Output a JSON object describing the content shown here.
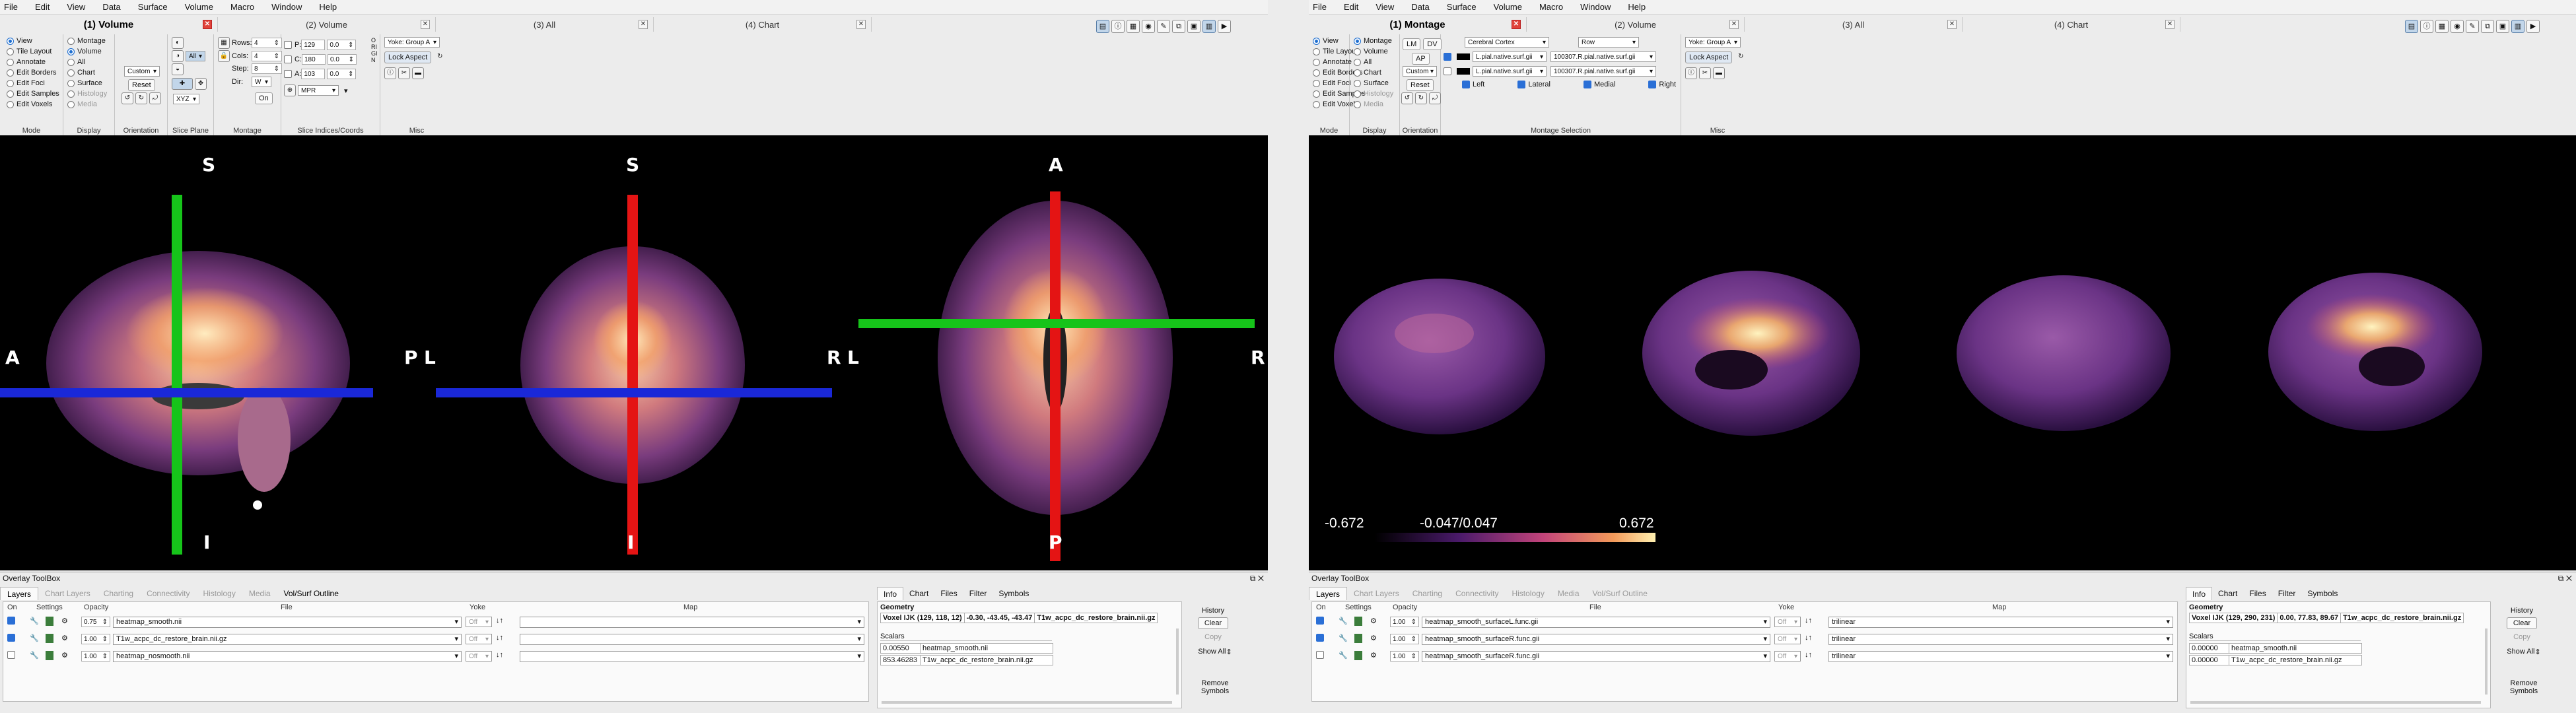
{
  "menu": [
    "File",
    "Edit",
    "View",
    "Data",
    "Surface",
    "Volume",
    "Macro",
    "Window",
    "Help"
  ],
  "left": {
    "tabs": [
      "(1) Volume",
      "(2) Volume",
      "(3) All",
      "(4) Chart"
    ],
    "mode": {
      "caption": "Mode",
      "items": [
        "View",
        "Tile Layout",
        "Annotate",
        "Edit Borders",
        "Edit Foci",
        "Edit Samples",
        "Edit Voxels"
      ],
      "selected": 0
    },
    "display": {
      "caption": "Display",
      "items": [
        "Montage",
        "Volume",
        "All",
        "Chart",
        "Surface",
        "Histology",
        "Media"
      ],
      "selected": 1
    },
    "orientation": {
      "caption": "Orientation",
      "custom": "Custom",
      "reset": "Reset"
    },
    "slice_plane": {
      "caption": "Slice Plane",
      "all": "All",
      "xyz": "XYZ"
    },
    "montage": {
      "caption": "Montage",
      "rows_label": "Rows:",
      "rows": "4",
      "cols_label": "Cols:",
      "cols": "4",
      "step_label": "Step:",
      "step": "8",
      "dir_label": "Dir:",
      "dir": "W",
      "on": "On"
    },
    "slice_coords": {
      "caption": "Slice Indices/Coords",
      "p_label": "P:",
      "p": "129",
      "p_mm": "0.0",
      "c_label": "C:",
      "c": "180",
      "c_mm": "0.0",
      "a_label": "A:",
      "a": "103",
      "a_mm": "0.0",
      "mpr": "MPR",
      "origin": "ORIGIN"
    },
    "misc": {
      "caption": "Misc",
      "yoke": "Yoke: Group A",
      "lock": "Lock Aspect"
    },
    "view_labels": {
      "s1": "S",
      "i1": "I",
      "a": "A",
      "p_l": "P",
      "l2": "L",
      "s2": "S",
      "i2": "I",
      "r2": "R",
      "l3": "L",
      "a3": "A",
      "p3": "P",
      "r3": "R"
    },
    "overlay": {
      "title": "Overlay ToolBox",
      "tabs": [
        "Layers",
        "Chart Layers",
        "Charting",
        "Connectivity",
        "Histology",
        "Media",
        "Vol/Surf Outline"
      ],
      "headers": {
        "on": "On",
        "settings": "Settings",
        "opacity": "Opacity",
        "file": "File",
        "yoke": "Yoke",
        "map": "Map"
      },
      "rows": [
        {
          "on": true,
          "opacity": "0.75",
          "file": "heatmap_smooth.nii",
          "yoke": "Off",
          "map": ""
        },
        {
          "on": true,
          "opacity": "1.00",
          "file": "T1w_acpc_dc_restore_brain.nii.gz",
          "yoke": "Off",
          "map": ""
        },
        {
          "on": false,
          "opacity": "1.00",
          "file": "heatmap_nosmooth.nii",
          "yoke": "Off",
          "map": ""
        }
      ]
    },
    "info": {
      "tabs": [
        "Info",
        "Chart",
        "Files",
        "Filter",
        "Symbols"
      ],
      "geometry": "Geometry",
      "voxel": "Voxel IJK (129, 118, 12)",
      "coords": "-0.30, -43.45, -43.47",
      "file": "T1w_acpc_dc_restore_brain.nii.gz",
      "scalars": "Scalars",
      "s1_val": "0.00550",
      "s1_name": "heatmap_smooth.nii",
      "s2_val": "853.46283",
      "s2_name": "T1w_acpc_dc_restore_brain.nii.gz",
      "history": "History",
      "clear": "Clear",
      "copy": "Copy",
      "show_all": "Show All",
      "remove_symbols": "Remove Symbols"
    }
  },
  "right": {
    "tabs": [
      "(1) Montage",
      "(2) Volume",
      "(3) All",
      "(4) Chart"
    ],
    "mode": {
      "caption": "Mode",
      "items": [
        "View",
        "Tile Layout",
        "Annotate",
        "Edit Borders",
        "Edit Foci",
        "Edit Samples",
        "Edit Voxels"
      ],
      "selected": 0
    },
    "display": {
      "caption": "Display",
      "items": [
        "Montage",
        "Volume",
        "All",
        "Chart",
        "Surface",
        "Histology",
        "Media"
      ],
      "selected": 0
    },
    "orientation": {
      "caption": "Orientation",
      "lm": "LM",
      "dv": "DV",
      "ap": "AP",
      "custom": "Custom",
      "reset": "Reset"
    },
    "montage_sel": {
      "caption": "Montage Selection",
      "structure": "Cerebral Cortex",
      "layout": "Row",
      "surf1": "L.pial.native.surf.gii",
      "surf1b": "100307.R.pial.native.surf.gii",
      "surf2": "L.pial.native.surf.gii",
      "surf2b": "100307.R.pial.native.surf.gii",
      "left": "Left",
      "lateral": "Lateral",
      "medial": "Medial",
      "rightchk": "Right"
    },
    "misc": {
      "caption": "Misc",
      "yoke": "Yoke: Group A",
      "lock": "Lock Aspect"
    },
    "colorbar": {
      "min": "-0.672",
      "mid": "-0.047/0.047",
      "max": "0.672"
    },
    "overlay": {
      "title": "Overlay ToolBox",
      "tabs": [
        "Layers",
        "Chart Layers",
        "Charting",
        "Connectivity",
        "Histology",
        "Media",
        "Vol/Surf Outline"
      ],
      "headers": {
        "on": "On",
        "settings": "Settings",
        "opacity": "Opacity",
        "file": "File",
        "yoke": "Yoke",
        "map": "Map"
      },
      "rows": [
        {
          "on": true,
          "opacity": "1.00",
          "file": "heatmap_smooth_surfaceL.func.gii",
          "yoke": "Off",
          "map": "trilinear"
        },
        {
          "on": true,
          "opacity": "1.00",
          "file": "heatmap_smooth_surfaceR.func.gii",
          "yoke": "Off",
          "map": "trilinear"
        },
        {
          "on": false,
          "opacity": "1.00",
          "file": "heatmap_smooth_surfaceR.func.gii",
          "yoke": "Off",
          "map": "trilinear"
        }
      ]
    },
    "info": {
      "tabs": [
        "Info",
        "Chart",
        "Files",
        "Filter",
        "Symbols"
      ],
      "geometry": "Geometry",
      "voxel": "Voxel IJK (129, 290, 231)",
      "coords": "0.00, 77.83, 89.67",
      "file": "T1w_acpc_dc_restore_brain.nii.gz",
      "scalars": "Scalars",
      "s1_val": "0.00000",
      "s1_name": "heatmap_smooth.nii",
      "s2_val": "0.00000",
      "s2_name": "T1w_acpc_dc_restore_brain.nii.gz",
      "history": "History",
      "clear": "Clear",
      "copy": "Copy",
      "show_all": "Show All",
      "remove_symbols": "Remove Symbols"
    }
  }
}
